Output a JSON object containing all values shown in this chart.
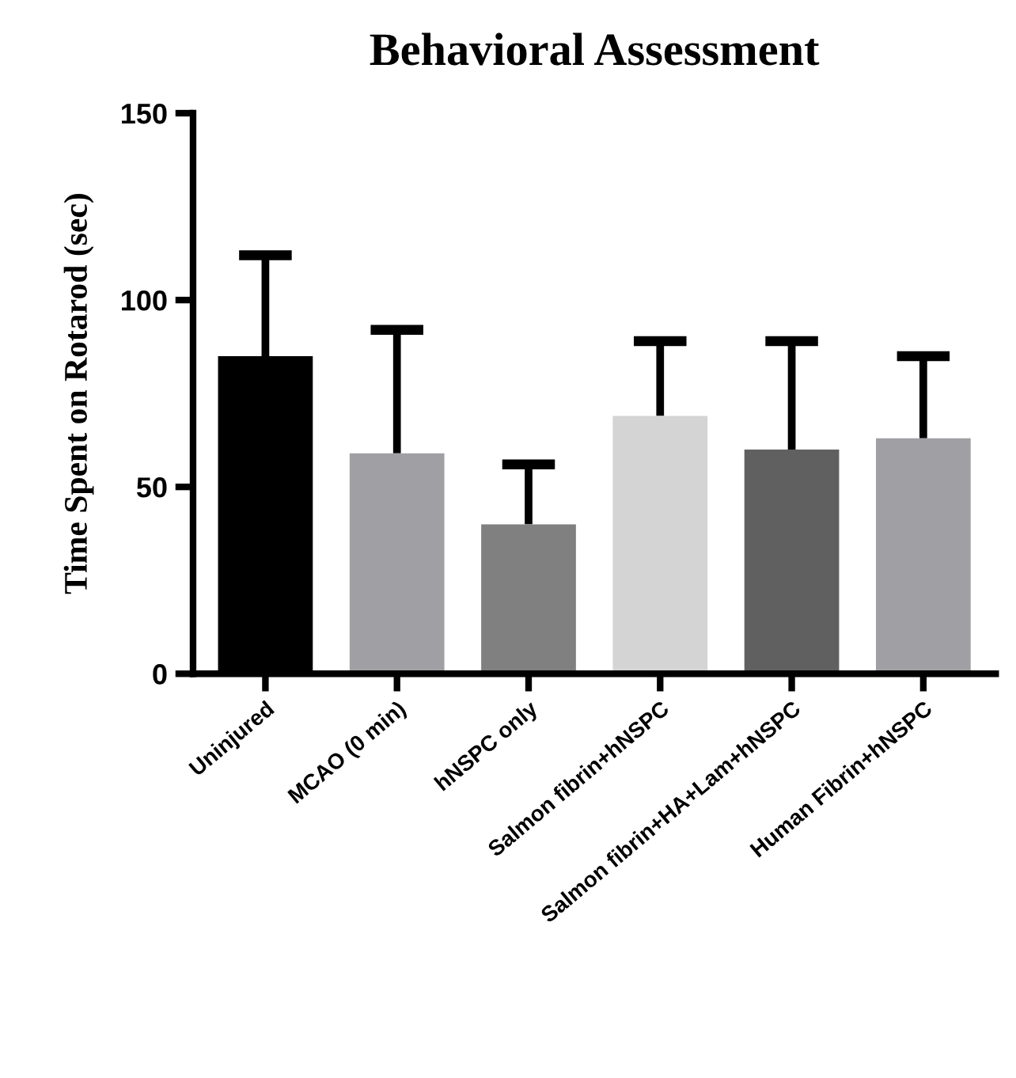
{
  "chart_data": {
    "type": "bar",
    "title": "Behavioral Assessment",
    "ylabel": "Time Spent on Rotarod (sec)",
    "categories": [
      "Uninjured",
      "MCAO (0 min)",
      "hNSPC only",
      "Salmon fibrin+hNSPC",
      "Salmon fibrin+HA+Lam+hNSPC",
      "Human Fibrin+hNSPC"
    ],
    "values": [
      85,
      59,
      40,
      69,
      60,
      63
    ],
    "colors": [
      "#000000",
      "#a0a0a4",
      "#808080",
      "#d4d4d4",
      "#606060",
      "#a0a0a4"
    ],
    "errors": [
      [
        85,
        112
      ],
      [
        59,
        92
      ],
      [
        40,
        56
      ],
      [
        69,
        89
      ],
      [
        60,
        89
      ],
      [
        63,
        85
      ]
    ],
    "ylim": [
      0,
      150
    ],
    "yticks": [
      0,
      50,
      100,
      150
    ],
    "grid": false
  }
}
